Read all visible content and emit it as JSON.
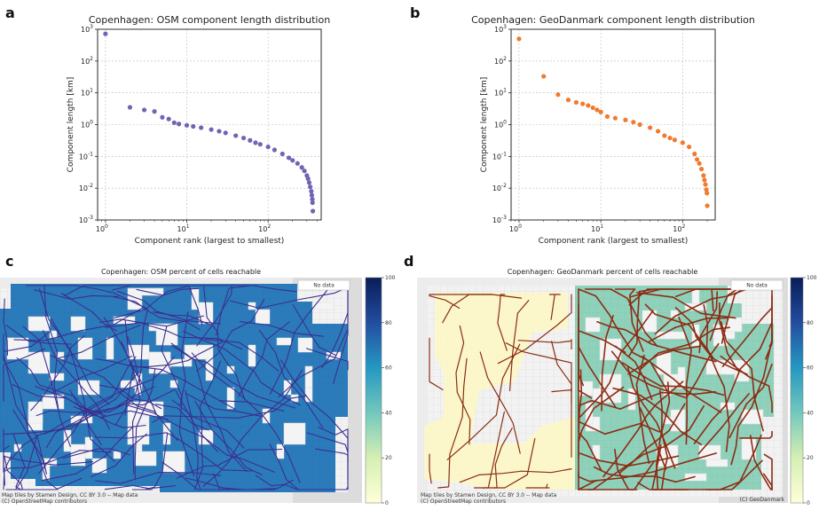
{
  "panels": {
    "a": {
      "letter": "a"
    },
    "b": {
      "letter": "b"
    },
    "c": {
      "letter": "c"
    },
    "d": {
      "letter": "d"
    }
  },
  "colors": {
    "osm": "#6f65b4",
    "geodanmark": "#f07b2e",
    "osm_grid": "#2b7bbb",
    "geo_grid": "#8fd1bb",
    "unreachable": "#fbf7c7",
    "osm_network": "#3b2f8f",
    "geo_network": "#8b2d14"
  },
  "chart_data": [
    {
      "type": "scatter",
      "title": "Copenhagen: OSM component length distribution",
      "xlabel": "Component rank (largest to smallest)",
      "ylabel": "Component length [km]",
      "xscale": "log",
      "yscale": "log",
      "xlim": [
        0.8,
        450
      ],
      "ylim": [
        0.001,
        1000
      ],
      "xticks": [
        "10^0",
        "10^1",
        "10^2"
      ],
      "yticks": [
        "10^-3",
        "10^-2",
        "10^-1",
        "10^0",
        "10^1",
        "10^2",
        "10^3"
      ],
      "grid": true,
      "series": [
        {
          "color": "#6f65b4",
          "points": [
            [
              1,
              720
            ],
            [
              2,
              3.5
            ],
            [
              3,
              2.9
            ],
            [
              4,
              2.6
            ],
            [
              5,
              1.7
            ],
            [
              6,
              1.5
            ],
            [
              7,
              1.15
            ],
            [
              8,
              1.05
            ],
            [
              10,
              0.95
            ],
            [
              12,
              0.88
            ],
            [
              15,
              0.8
            ],
            [
              20,
              0.7
            ],
            [
              25,
              0.62
            ],
            [
              30,
              0.55
            ],
            [
              40,
              0.45
            ],
            [
              50,
              0.38
            ],
            [
              60,
              0.32
            ],
            [
              70,
              0.27
            ],
            [
              80,
              0.24
            ],
            [
              100,
              0.2
            ],
            [
              120,
              0.16
            ],
            [
              150,
              0.12
            ],
            [
              180,
              0.09
            ],
            [
              200,
              0.075
            ],
            [
              230,
              0.06
            ],
            [
              260,
              0.045
            ],
            [
              280,
              0.035
            ],
            [
              300,
              0.025
            ],
            [
              310,
              0.02
            ],
            [
              320,
              0.015
            ],
            [
              330,
              0.011
            ],
            [
              340,
              0.008
            ],
            [
              345,
              0.006
            ],
            [
              350,
              0.0045
            ],
            [
              352,
              0.0035
            ],
            [
              355,
              0.0019
            ]
          ]
        }
      ]
    },
    {
      "type": "scatter",
      "title": "Copenhagen: GeoDanmark component length distribution",
      "xlabel": "Component rank (largest to smallest)",
      "ylabel": "Component length [km]",
      "xscale": "log",
      "yscale": "log",
      "xlim": [
        0.8,
        250
      ],
      "ylim": [
        0.001,
        1000
      ],
      "xticks": [
        "10^0",
        "10^1",
        "10^2"
      ],
      "yticks": [
        "10^-3",
        "10^-2",
        "10^-1",
        "10^0",
        "10^1",
        "10^2",
        "10^3"
      ],
      "grid": true,
      "series": [
        {
          "color": "#f07b2e",
          "points": [
            [
              1,
              500
            ],
            [
              2,
              33
            ],
            [
              3,
              8.8
            ],
            [
              4,
              6
            ],
            [
              5,
              5
            ],
            [
              6,
              4.5
            ],
            [
              7,
              4
            ],
            [
              8,
              3.4
            ],
            [
              9,
              2.9
            ],
            [
              10,
              2.5
            ],
            [
              12,
              1.8
            ],
            [
              15,
              1.6
            ],
            [
              20,
              1.4
            ],
            [
              25,
              1.2
            ],
            [
              30,
              1.0
            ],
            [
              40,
              0.8
            ],
            [
              50,
              0.62
            ],
            [
              60,
              0.45
            ],
            [
              70,
              0.38
            ],
            [
              80,
              0.33
            ],
            [
              100,
              0.27
            ],
            [
              120,
              0.2
            ],
            [
              140,
              0.12
            ],
            [
              150,
              0.08
            ],
            [
              160,
              0.06
            ],
            [
              170,
              0.04
            ],
            [
              180,
              0.025
            ],
            [
              185,
              0.018
            ],
            [
              190,
              0.013
            ],
            [
              195,
              0.009
            ],
            [
              198,
              0.007
            ],
            [
              200,
              0.0028
            ]
          ]
        }
      ]
    },
    {
      "type": "heatmap",
      "title": "Copenhagen: OSM percent of cells reachable",
      "legend_label": "No data",
      "colorbar_ticks": [
        "0",
        "20",
        "40",
        "60",
        "80",
        "100"
      ],
      "colorbar_range": [
        0,
        100
      ],
      "attribution": [
        "Map tiles by Stamen Design, CC BY 3.0 -- Map data",
        "(C) OpenStreetMap contributors"
      ],
      "reachable_share_note": "",
      "cell_value_dominant": 63
    },
    {
      "type": "heatmap",
      "title": "Copenhagen: GeoDanmark percent of cells reachable",
      "legend_label": "No data",
      "colorbar_ticks": [
        "0",
        "20",
        "40",
        "60",
        "80",
        "100"
      ],
      "colorbar_range": [
        0,
        100
      ],
      "attribution": [
        "Map tiles by Stamen Design, CC BY 3.0 -- Map data",
        "(C) OpenStreetMap contributors"
      ],
      "source_credit": "(C) GeoDanmark",
      "cell_value_dominant": 40
    }
  ]
}
